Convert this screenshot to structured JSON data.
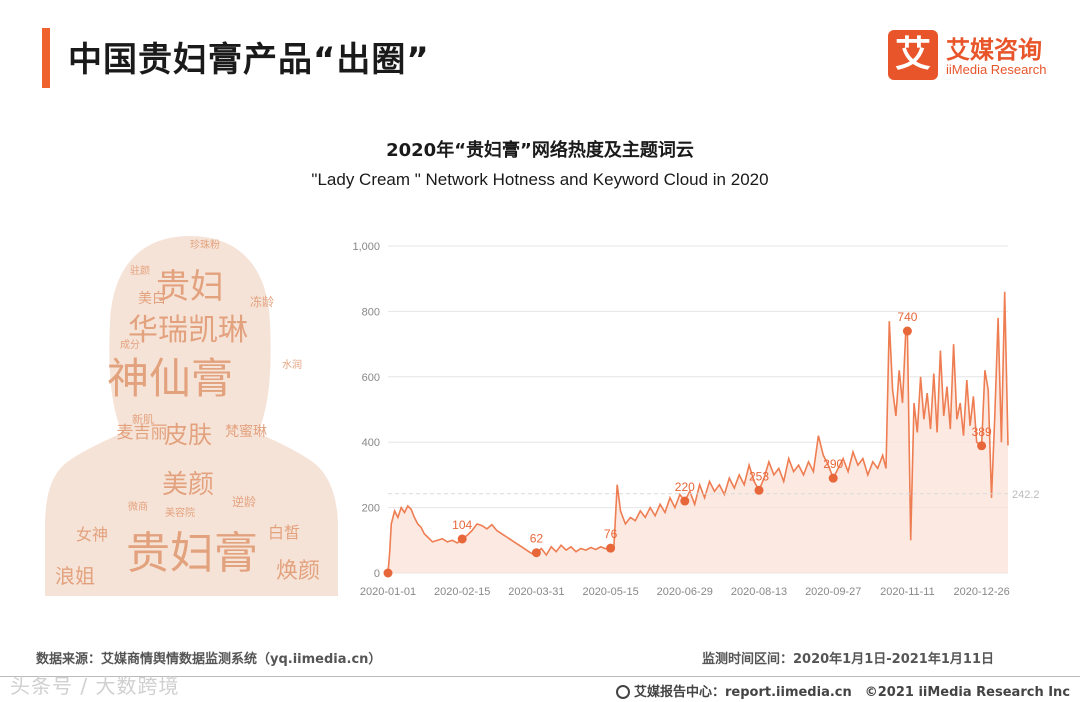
{
  "header": {
    "title": "中国贵妇膏产品“出圈”",
    "logo_mark": "艾",
    "logo_cn": "艾媒咨询",
    "logo_en": "iiMedia Research"
  },
  "chart_titles": {
    "cn": "2020年“贵妇膏”网络热度及主题词云",
    "en": "\"Lady Cream \" Network Hotness and Keyword Cloud in 2020"
  },
  "word_cloud": {
    "words": [
      "贵妇",
      "华瑞凯琳",
      "神仙膏",
      "皮肤",
      "美颜",
      "贵妇膏",
      "浪姐",
      "女神",
      "焕颜",
      "白皙",
      "麦吉丽",
      "梵蜜琳",
      "美白",
      "新肌",
      "珍珠粉",
      "驻颜",
      "冻龄",
      "逆龄",
      "美容院",
      "微商",
      "成分",
      "水润"
    ],
    "color": "#e3a27e"
  },
  "chart_data": {
    "type": "area",
    "title": "2020年“贵妇膏”网络热度及主题词云",
    "subtitle": "\"Lady Cream \" Network Hotness and Keyword Cloud in 2020",
    "x_labels": [
      "2020-01-01",
      "2020-02-15",
      "2020-03-31",
      "2020-05-15",
      "2020-06-29",
      "2020-08-13",
      "2020-09-27",
      "2020-11-11",
      "2020-12-26"
    ],
    "ylim": [
      0,
      1000
    ],
    "yticks": [
      "0",
      "200",
      "400",
      "600",
      "800",
      "1,000"
    ],
    "grid": true,
    "line_color": "#ee7d52",
    "fill_color": "#fbe3d8",
    "average": {
      "value": 242.23,
      "label": "242.23"
    },
    "annotations": [
      {
        "date": "2020-01-01",
        "value": 0,
        "label": "0"
      },
      {
        "date": "2020-02-15",
        "value": 104,
        "label": "104"
      },
      {
        "date": "2020-03-31",
        "value": 62,
        "label": "62"
      },
      {
        "date": "2020-05-15",
        "value": 76,
        "label": "76"
      },
      {
        "date": "2020-06-29",
        "value": 220,
        "label": "220"
      },
      {
        "date": "2020-08-13",
        "value": 253,
        "label": "253"
      },
      {
        "date": "2020-09-27",
        "value": 290,
        "label": "290"
      },
      {
        "date": "2020-11-11",
        "value": 740,
        "label": "740"
      },
      {
        "date": "2020-12-26",
        "value": 389,
        "label": "389"
      }
    ],
    "series": [
      {
        "points": [
          [
            "2020-01-01",
            0
          ],
          [
            "2020-01-02",
            60
          ],
          [
            "2020-01-03",
            150
          ],
          [
            "2020-01-05",
            190
          ],
          [
            "2020-01-07",
            170
          ],
          [
            "2020-01-09",
            200
          ],
          [
            "2020-01-11",
            185
          ],
          [
            "2020-01-13",
            205
          ],
          [
            "2020-01-15",
            195
          ],
          [
            "2020-01-17",
            170
          ],
          [
            "2020-01-19",
            150
          ],
          [
            "2020-01-21",
            140
          ],
          [
            "2020-01-23",
            120
          ],
          [
            "2020-01-25",
            110
          ],
          [
            "2020-01-28",
            95
          ],
          [
            "2020-01-31",
            100
          ],
          [
            "2020-02-03",
            105
          ],
          [
            "2020-02-06",
            95
          ],
          [
            "2020-02-09",
            100
          ],
          [
            "2020-02-12",
            92
          ],
          [
            "2020-02-15",
            104
          ],
          [
            "2020-02-18",
            115
          ],
          [
            "2020-02-21",
            130
          ],
          [
            "2020-02-24",
            150
          ],
          [
            "2020-02-27",
            145
          ],
          [
            "2020-03-01",
            135
          ],
          [
            "2020-03-04",
            148
          ],
          [
            "2020-03-07",
            130
          ],
          [
            "2020-03-10",
            120
          ],
          [
            "2020-03-13",
            110
          ],
          [
            "2020-03-16",
            100
          ],
          [
            "2020-03-19",
            90
          ],
          [
            "2020-03-22",
            80
          ],
          [
            "2020-03-25",
            70
          ],
          [
            "2020-03-28",
            60
          ],
          [
            "2020-03-31",
            62
          ],
          [
            "2020-04-03",
            75
          ],
          [
            "2020-04-06",
            55
          ],
          [
            "2020-04-09",
            80
          ],
          [
            "2020-04-12",
            65
          ],
          [
            "2020-04-15",
            85
          ],
          [
            "2020-04-18",
            70
          ],
          [
            "2020-04-21",
            80
          ],
          [
            "2020-04-24",
            65
          ],
          [
            "2020-04-27",
            75
          ],
          [
            "2020-04-30",
            70
          ],
          [
            "2020-05-03",
            78
          ],
          [
            "2020-05-06",
            72
          ],
          [
            "2020-05-09",
            80
          ],
          [
            "2020-05-12",
            74
          ],
          [
            "2020-05-15",
            76
          ],
          [
            "2020-05-17",
            80
          ],
          [
            "2020-05-19",
            270
          ],
          [
            "2020-05-21",
            190
          ],
          [
            "2020-05-24",
            150
          ],
          [
            "2020-05-27",
            170
          ],
          [
            "2020-05-30",
            160
          ],
          [
            "2020-06-02",
            190
          ],
          [
            "2020-06-05",
            170
          ],
          [
            "2020-06-08",
            200
          ],
          [
            "2020-06-11",
            175
          ],
          [
            "2020-06-14",
            210
          ],
          [
            "2020-06-17",
            185
          ],
          [
            "2020-06-20",
            230
          ],
          [
            "2020-06-23",
            200
          ],
          [
            "2020-06-26",
            240
          ],
          [
            "2020-06-29",
            220
          ],
          [
            "2020-07-02",
            250
          ],
          [
            "2020-07-05",
            210
          ],
          [
            "2020-07-08",
            270
          ],
          [
            "2020-07-11",
            230
          ],
          [
            "2020-07-14",
            280
          ],
          [
            "2020-07-17",
            250
          ],
          [
            "2020-07-20",
            270
          ],
          [
            "2020-07-23",
            240
          ],
          [
            "2020-07-26",
            290
          ],
          [
            "2020-07-29",
            260
          ],
          [
            "2020-08-01",
            300
          ],
          [
            "2020-08-04",
            270
          ],
          [
            "2020-08-07",
            330
          ],
          [
            "2020-08-10",
            280
          ],
          [
            "2020-08-13",
            253
          ],
          [
            "2020-08-16",
            290
          ],
          [
            "2020-08-19",
            340
          ],
          [
            "2020-08-22",
            300
          ],
          [
            "2020-08-25",
            320
          ],
          [
            "2020-08-28",
            280
          ],
          [
            "2020-08-31",
            350
          ],
          [
            "2020-09-03",
            310
          ],
          [
            "2020-09-06",
            330
          ],
          [
            "2020-09-09",
            300
          ],
          [
            "2020-09-12",
            340
          ],
          [
            "2020-09-15",
            310
          ],
          [
            "2020-09-18",
            420
          ],
          [
            "2020-09-21",
            360
          ],
          [
            "2020-09-24",
            330
          ],
          [
            "2020-09-27",
            290
          ],
          [
            "2020-09-30",
            320
          ],
          [
            "2020-10-03",
            350
          ],
          [
            "2020-10-06",
            310
          ],
          [
            "2020-10-09",
            370
          ],
          [
            "2020-10-12",
            330
          ],
          [
            "2020-10-15",
            350
          ],
          [
            "2020-10-18",
            300
          ],
          [
            "2020-10-21",
            340
          ],
          [
            "2020-10-24",
            320
          ],
          [
            "2020-10-27",
            360
          ],
          [
            "2020-10-29",
            320
          ],
          [
            "2020-10-31",
            770
          ],
          [
            "2020-11-02",
            560
          ],
          [
            "2020-11-04",
            480
          ],
          [
            "2020-11-06",
            620
          ],
          [
            "2020-11-08",
            520
          ],
          [
            "2020-11-10",
            740
          ],
          [
            "2020-11-11",
            740
          ],
          [
            "2020-11-13",
            100
          ],
          [
            "2020-11-15",
            520
          ],
          [
            "2020-11-17",
            430
          ],
          [
            "2020-11-19",
            600
          ],
          [
            "2020-11-21",
            470
          ],
          [
            "2020-11-23",
            550
          ],
          [
            "2020-11-25",
            440
          ],
          [
            "2020-11-27",
            610
          ],
          [
            "2020-11-29",
            430
          ],
          [
            "2020-12-01",
            680
          ],
          [
            "2020-12-03",
            480
          ],
          [
            "2020-12-05",
            570
          ],
          [
            "2020-12-07",
            440
          ],
          [
            "2020-12-09",
            700
          ],
          [
            "2020-12-11",
            470
          ],
          [
            "2020-12-13",
            520
          ],
          [
            "2020-12-15",
            420
          ],
          [
            "2020-12-17",
            590
          ],
          [
            "2020-12-19",
            450
          ],
          [
            "2020-12-21",
            540
          ],
          [
            "2020-12-23",
            400
          ],
          [
            "2020-12-26",
            389
          ],
          [
            "2020-12-28",
            620
          ],
          [
            "2020-12-30",
            560
          ],
          [
            "2021-01-01",
            230
          ],
          [
            "2021-01-03",
            480
          ],
          [
            "2021-01-05",
            780
          ],
          [
            "2021-01-07",
            400
          ],
          [
            "2021-01-09",
            860
          ],
          [
            "2021-01-11",
            390
          ]
        ]
      }
    ]
  },
  "footer": {
    "source": "数据来源：艾媒商情舆情数据监测系统（yq.iimedia.cn）",
    "period": "监测时间区间：2020年1月1日-2021年1月11日",
    "report": "艾媒报告中心：report.iimedia.cn　©2021  iiMedia Research  Inc",
    "watermark": "头条号 / 大数跨境"
  }
}
